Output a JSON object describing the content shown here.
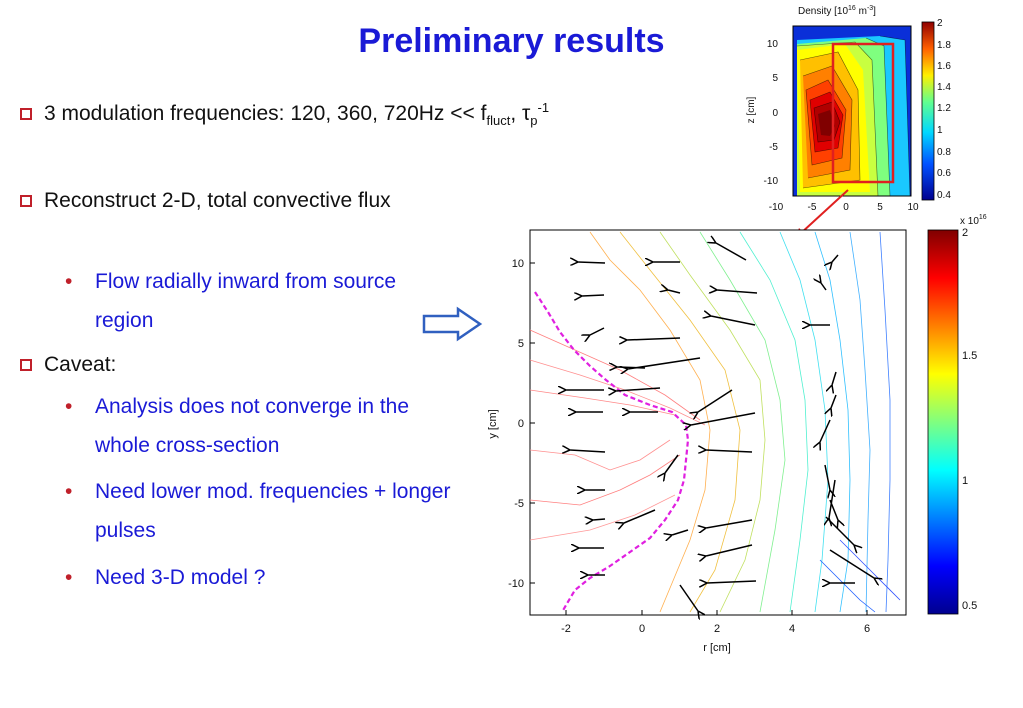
{
  "slide": {
    "title": "Preliminary results",
    "bullets": [
      {
        "text_main": "3 modulation frequencies: 120, 360, 720Hz << f",
        "sub1": "fluct",
        "mid": ", τ",
        "sub2": "p",
        "sup": "-1"
      },
      {
        "text": "Reconstruct 2-D, total convective flux"
      },
      {
        "text": "Caveat:"
      }
    ],
    "sub_bullets": [
      "Flow radially inward from source region",
      "Analysis does not converge in the whole cross-section",
      "Need lower mod. frequencies + longer pulses",
      "Need 3-D model ?"
    ]
  },
  "inset": {
    "title": "Density [10",
    "title_sup": "16",
    "title_unit": " m",
    "title_unit_sup": "-3",
    "title_end": "]",
    "ylabel": "z [cm]",
    "xticks": [
      "-10",
      "-5",
      "0",
      "5",
      "10"
    ],
    "yticks": [
      "10",
      "5",
      "0",
      "-5",
      "-10"
    ],
    "colorbar_ticks": [
      "2",
      "1.8",
      "1.6",
      "1.4",
      "1.2",
      "1",
      "0.8",
      "0.6",
      "0.4"
    ]
  },
  "main_plot": {
    "xlabel": "r  [cm]",
    "ylabel": "y [cm]",
    "xticks": [
      "-2",
      "0",
      "2",
      "4",
      "6"
    ],
    "yticks": [
      "10",
      "5",
      "0",
      "-5",
      "-10"
    ],
    "colorbar_ticks": [
      "2",
      "1.5",
      "1",
      "0.5"
    ],
    "colorbar_scale": "x 10",
    "colorbar_scale_sup": "16"
  },
  "colors": {
    "title": "#1a1ad6",
    "bullet_box": "#c0202a",
    "sub_text": "#1a1ad6",
    "separatrix": "#e020e0",
    "arrow_pointer": "#e02020"
  }
}
